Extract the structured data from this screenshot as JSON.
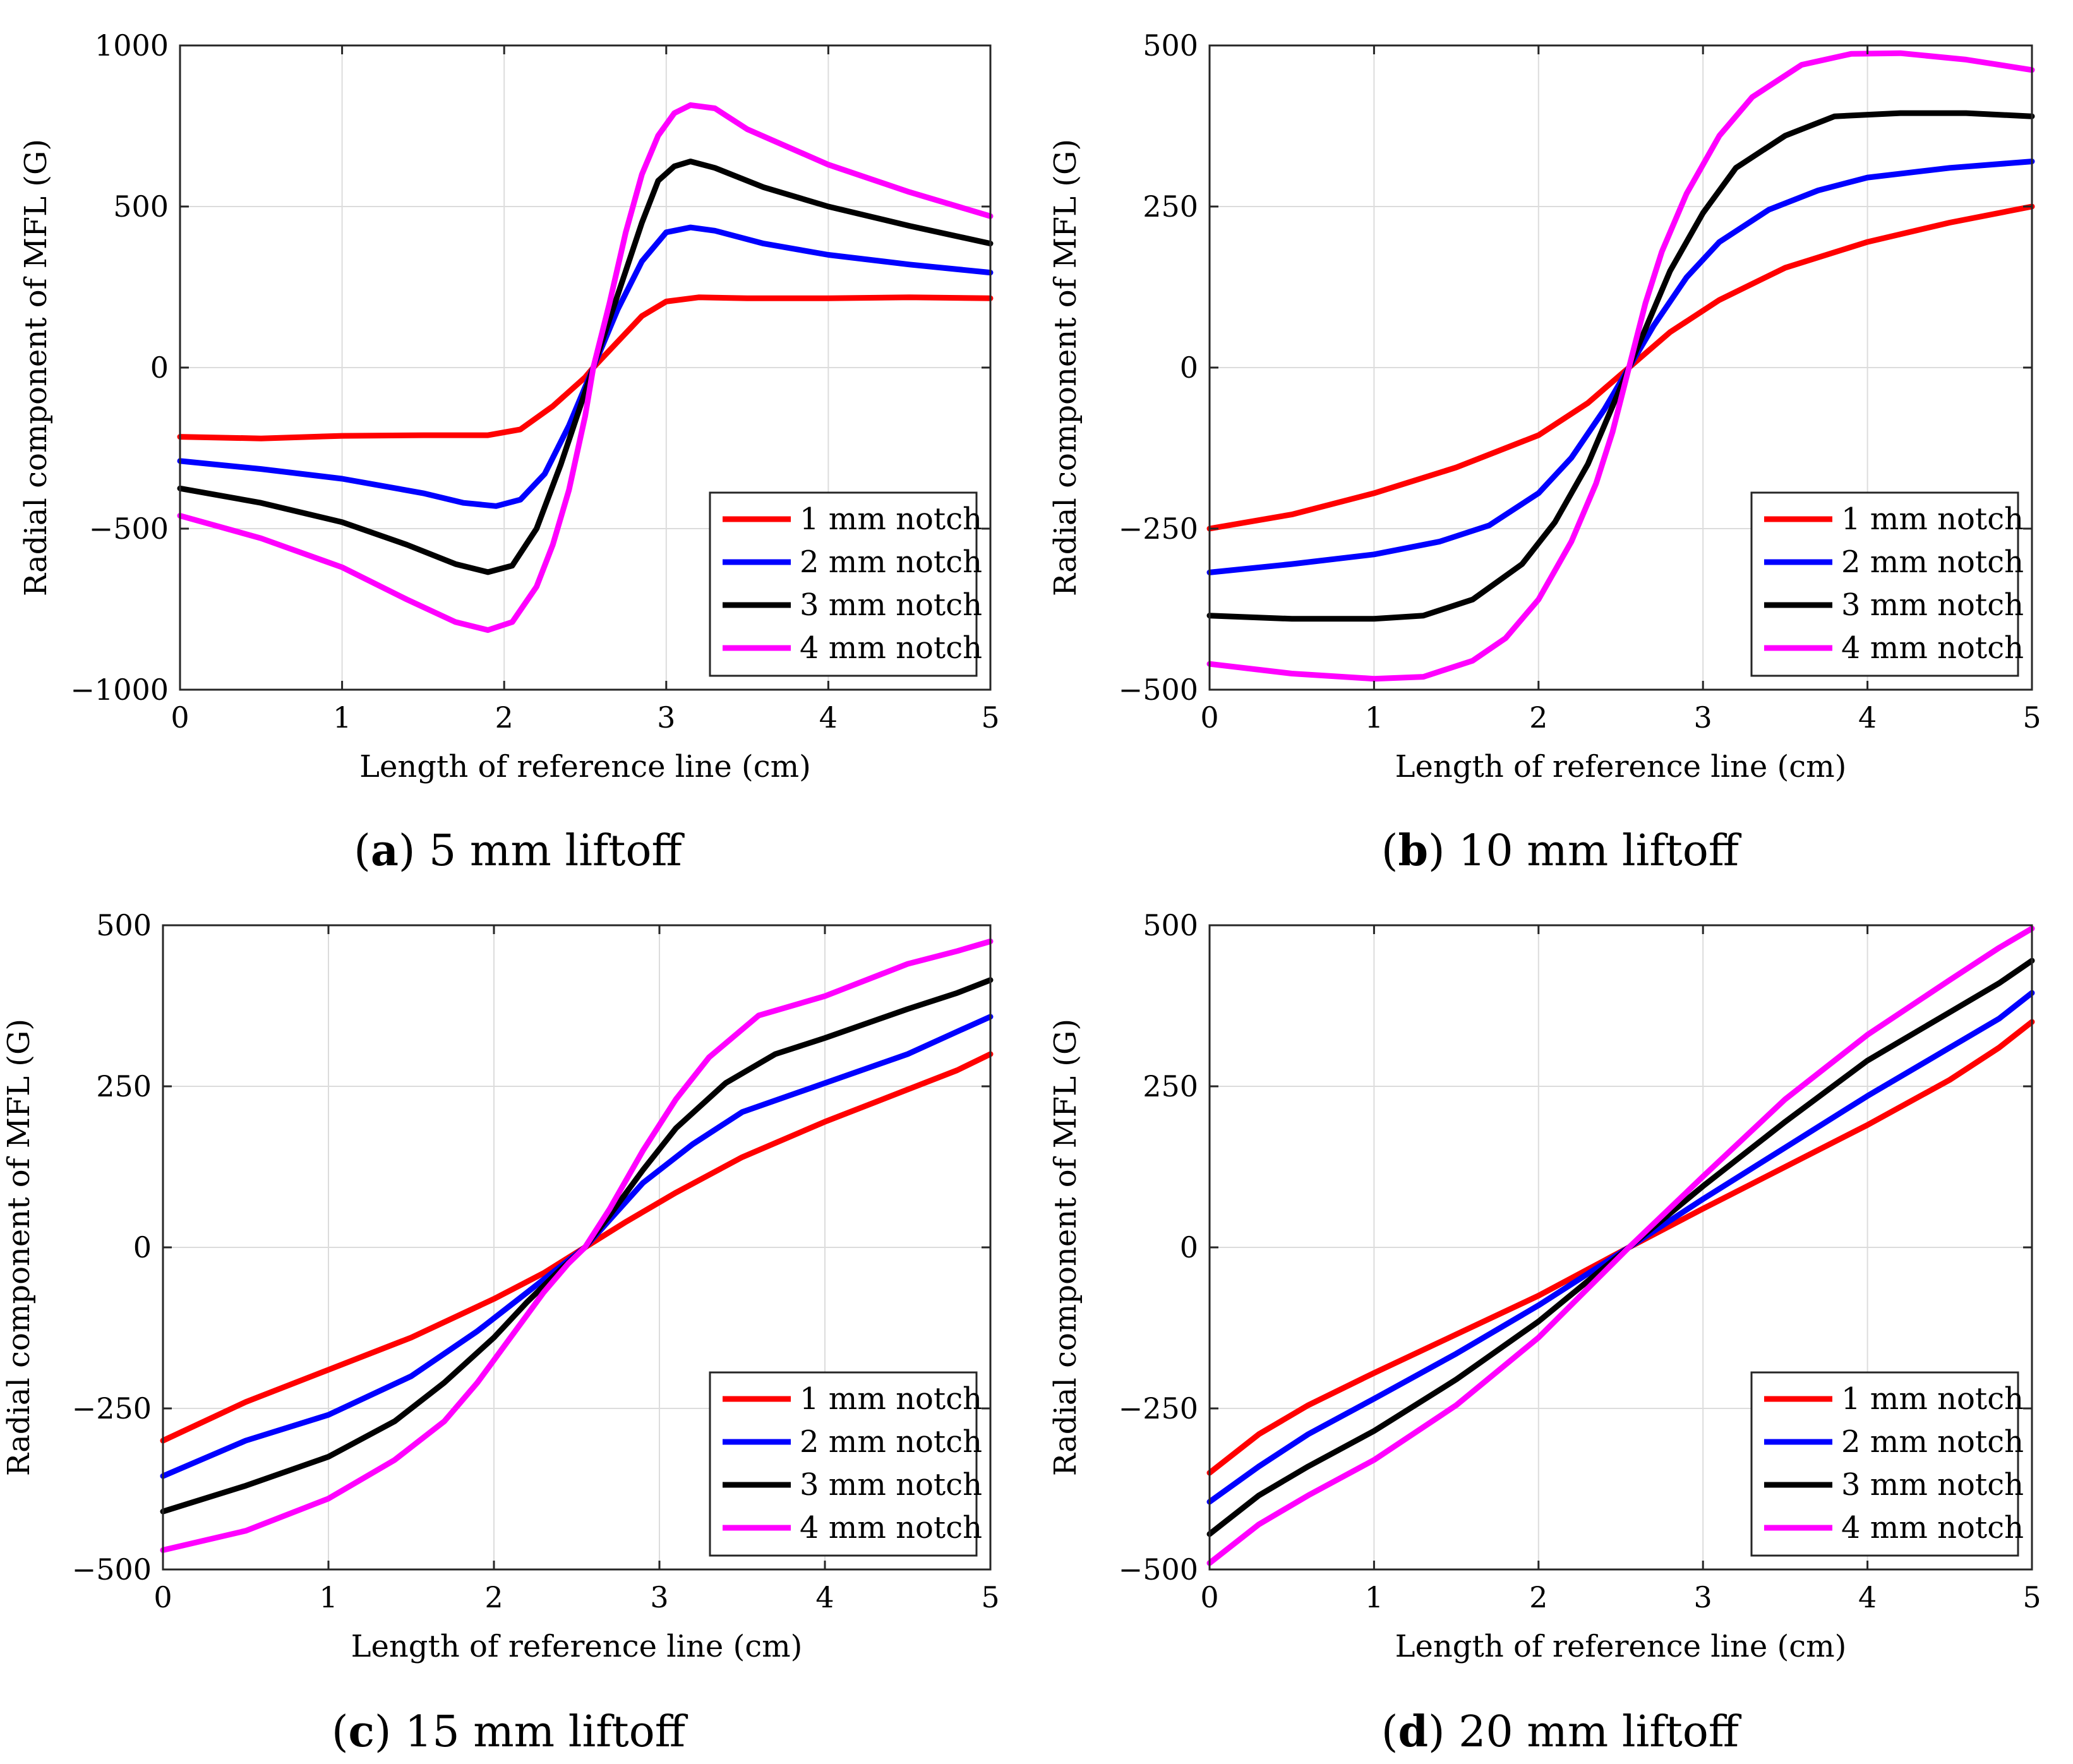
{
  "chart_data": [
    {
      "type": "line",
      "caption_letter": "a",
      "caption_text": " 5 mm liftoff",
      "xlabel": "Length of reference line (cm)",
      "ylabel": "Radial component of MFL (G)",
      "xlim": [
        0,
        5
      ],
      "ylim": [
        -1000,
        1000
      ],
      "xticks": [
        0,
        1,
        2,
        3,
        4,
        5
      ],
      "xtick_labels": [
        "0",
        "1",
        "2",
        "3",
        "4",
        "5"
      ],
      "yticks": [
        -1000,
        -500,
        0,
        500,
        1000
      ],
      "ytick_labels": [
        "−1000",
        "−500",
        "0",
        "500",
        "1000"
      ],
      "grid": true,
      "legend_position": "lower-right",
      "series": [
        {
          "name": "1 mm notch",
          "color": "#ff0000",
          "x": [
            0,
            0.5,
            1,
            1.5,
            1.9,
            2.1,
            2.3,
            2.5,
            2.55,
            2.7,
            2.85,
            3.0,
            3.2,
            3.5,
            4,
            4.5,
            5
          ],
          "y": [
            -215,
            -220,
            -212,
            -210,
            -210,
            -192,
            -120,
            -30,
            0,
            80,
            160,
            205,
            218,
            215,
            215,
            218,
            215
          ]
        },
        {
          "name": "2 mm notch",
          "color": "#0000ff",
          "x": [
            0,
            0.5,
            1,
            1.5,
            1.75,
            1.95,
            2.1,
            2.25,
            2.4,
            2.55,
            2.7,
            2.85,
            3.0,
            3.15,
            3.3,
            3.6,
            4,
            4.5,
            5
          ],
          "y": [
            -290,
            -315,
            -345,
            -390,
            -420,
            -430,
            -410,
            -330,
            -180,
            0,
            180,
            330,
            420,
            435,
            425,
            385,
            350,
            320,
            295
          ]
        },
        {
          "name": "3 mm notch",
          "color": "#000000",
          "x": [
            0,
            0.5,
            1,
            1.4,
            1.7,
            1.9,
            2.05,
            2.2,
            2.35,
            2.45,
            2.55,
            2.65,
            2.75,
            2.85,
            2.95,
            3.05,
            3.15,
            3.3,
            3.6,
            4,
            4.5,
            5
          ],
          "y": [
            -375,
            -420,
            -480,
            -550,
            -610,
            -635,
            -615,
            -500,
            -300,
            -150,
            0,
            150,
            300,
            450,
            580,
            625,
            640,
            620,
            560,
            500,
            440,
            385
          ]
        },
        {
          "name": "4 mm notch",
          "color": "#ff00ff",
          "x": [
            0,
            0.5,
            1,
            1.4,
            1.7,
            1.9,
            2.05,
            2.2,
            2.3,
            2.4,
            2.5,
            2.55,
            2.65,
            2.75,
            2.85,
            2.95,
            3.05,
            3.15,
            3.3,
            3.5,
            4,
            4.5,
            5
          ],
          "y": [
            -460,
            -530,
            -620,
            -720,
            -790,
            -815,
            -790,
            -680,
            -550,
            -380,
            -150,
            0,
            200,
            420,
            600,
            720,
            790,
            815,
            805,
            740,
            630,
            545,
            470
          ]
        }
      ]
    },
    {
      "type": "line",
      "caption_letter": "b",
      "caption_text": " 10 mm liftoff",
      "xlabel": "Length of reference line (cm)",
      "ylabel": "Radial component of MFL (G)",
      "xlim": [
        0,
        5
      ],
      "ylim": [
        -500,
        500
      ],
      "xticks": [
        0,
        1,
        2,
        3,
        4,
        5
      ],
      "xtick_labels": [
        "0",
        "1",
        "2",
        "3",
        "4",
        "5"
      ],
      "yticks": [
        -500,
        -250,
        0,
        250,
        500
      ],
      "ytick_labels": [
        "−500",
        "−250",
        "0",
        "250",
        "500"
      ],
      "grid": true,
      "legend_position": "lower-right",
      "series": [
        {
          "name": "1 mm notch",
          "color": "#ff0000",
          "x": [
            0,
            0.5,
            1,
            1.5,
            2,
            2.3,
            2.55,
            2.8,
            3.1,
            3.5,
            4,
            4.5,
            5
          ],
          "y": [
            -250,
            -228,
            -195,
            -155,
            -105,
            -55,
            0,
            55,
            105,
            155,
            195,
            225,
            250
          ]
        },
        {
          "name": "2 mm notch",
          "color": "#0000ff",
          "x": [
            0,
            0.5,
            1,
            1.4,
            1.7,
            2.0,
            2.2,
            2.4,
            2.55,
            2.7,
            2.9,
            3.1,
            3.4,
            3.7,
            4,
            4.5,
            5
          ],
          "y": [
            -318,
            -305,
            -290,
            -270,
            -245,
            -195,
            -140,
            -65,
            0,
            65,
            140,
            195,
            245,
            275,
            295,
            310,
            320
          ]
        },
        {
          "name": "3 mm notch",
          "color": "#000000",
          "x": [
            0,
            0.5,
            1,
            1.3,
            1.6,
            1.9,
            2.1,
            2.3,
            2.45,
            2.55,
            2.65,
            2.8,
            3.0,
            3.2,
            3.5,
            3.8,
            4.2,
            4.6,
            5
          ],
          "y": [
            -385,
            -390,
            -390,
            -385,
            -360,
            -305,
            -240,
            -150,
            -60,
            0,
            60,
            150,
            240,
            310,
            360,
            390,
            395,
            395,
            390
          ]
        },
        {
          "name": "4 mm notch",
          "color": "#ff00ff",
          "x": [
            0,
            0.5,
            1,
            1.3,
            1.6,
            1.8,
            2.0,
            2.2,
            2.35,
            2.45,
            2.55,
            2.65,
            2.75,
            2.9,
            3.1,
            3.3,
            3.6,
            3.9,
            4.2,
            4.6,
            5
          ],
          "y": [
            -460,
            -475,
            -483,
            -480,
            -455,
            -420,
            -360,
            -270,
            -180,
            -100,
            0,
            100,
            180,
            270,
            360,
            420,
            470,
            487,
            488,
            478,
            462
          ]
        }
      ]
    },
    {
      "type": "line",
      "caption_letter": "c",
      "caption_text": " 15 mm liftoff",
      "xlabel": "Length of reference line (cm)",
      "ylabel": "Radial component of MFL (G)",
      "xlim": [
        0,
        5
      ],
      "ylim": [
        -500,
        500
      ],
      "xticks": [
        0,
        1,
        2,
        3,
        4,
        5
      ],
      "xtick_labels": [
        "0",
        "1",
        "2",
        "3",
        "4",
        "5"
      ],
      "yticks": [
        -500,
        -250,
        0,
        250,
        500
      ],
      "ytick_labels": [
        "−500",
        "−250",
        "0",
        "250",
        "500"
      ],
      "grid": true,
      "legend_position": "lower-right",
      "series": [
        {
          "name": "1 mm notch",
          "color": "#ff0000",
          "x": [
            0,
            0.5,
            1,
            1.5,
            2,
            2.3,
            2.55,
            2.8,
            3.1,
            3.5,
            4,
            4.5,
            4.8,
            5
          ],
          "y": [
            -300,
            -240,
            -190,
            -140,
            -80,
            -40,
            0,
            40,
            85,
            140,
            195,
            245,
            275,
            300
          ]
        },
        {
          "name": "2 mm notch",
          "color": "#0000ff",
          "x": [
            0,
            0.5,
            1,
            1.5,
            1.9,
            2.2,
            2.55,
            2.9,
            3.2,
            3.5,
            4,
            4.5,
            4.8,
            5
          ],
          "y": [
            -355,
            -300,
            -260,
            -200,
            -130,
            -70,
            0,
            100,
            160,
            210,
            255,
            300,
            335,
            358
          ]
        },
        {
          "name": "3 mm notch",
          "color": "#000000",
          "x": [
            0,
            0.5,
            1,
            1.4,
            1.7,
            2.0,
            2.2,
            2.4,
            2.55,
            2.7,
            2.9,
            3.1,
            3.4,
            3.7,
            4,
            4.5,
            4.8,
            5
          ],
          "y": [
            -410,
            -370,
            -325,
            -270,
            -210,
            -140,
            -85,
            -35,
            0,
            50,
            120,
            185,
            255,
            300,
            325,
            370,
            395,
            415
          ]
        },
        {
          "name": "4 mm notch",
          "color": "#ff00ff",
          "x": [
            0,
            0.5,
            1,
            1.4,
            1.7,
            1.9,
            2.1,
            2.3,
            2.45,
            2.55,
            2.7,
            2.9,
            3.1,
            3.3,
            3.6,
            4,
            4.5,
            4.8,
            5
          ],
          "y": [
            -470,
            -440,
            -390,
            -330,
            -270,
            -210,
            -140,
            -70,
            -25,
            0,
            60,
            150,
            230,
            295,
            360,
            390,
            440,
            460,
            475
          ]
        }
      ]
    },
    {
      "type": "line",
      "caption_letter": "d",
      "caption_text": " 20 mm liftoff",
      "xlabel": "Length of reference line (cm)",
      "ylabel": "Radial component of MFL (G)",
      "xlim": [
        0,
        5
      ],
      "ylim": [
        -500,
        500
      ],
      "xticks": [
        0,
        1,
        2,
        3,
        4,
        5
      ],
      "xtick_labels": [
        "0",
        "1",
        "2",
        "3",
        "4",
        "5"
      ],
      "yticks": [
        -500,
        -250,
        0,
        250,
        500
      ],
      "ytick_labels": [
        "−500",
        "−250",
        "0",
        "250",
        "500"
      ],
      "grid": true,
      "legend_position": "lower-right",
      "series": [
        {
          "name": "1 mm notch",
          "color": "#ff0000",
          "x": [
            0,
            0.3,
            0.6,
            1,
            1.5,
            2,
            2.55,
            3,
            3.5,
            4,
            4.5,
            4.8,
            5
          ],
          "y": [
            -350,
            -290,
            -245,
            -195,
            -135,
            -75,
            0,
            60,
            125,
            190,
            260,
            310,
            350
          ]
        },
        {
          "name": "2 mm notch",
          "color": "#0000ff",
          "x": [
            0,
            0.3,
            0.6,
            1,
            1.5,
            2,
            2.55,
            3,
            3.5,
            4,
            4.5,
            4.8,
            5
          ],
          "y": [
            -395,
            -340,
            -290,
            -235,
            -165,
            -90,
            0,
            75,
            155,
            235,
            310,
            355,
            395
          ]
        },
        {
          "name": "3 mm notch",
          "color": "#000000",
          "x": [
            0,
            0.3,
            0.6,
            1,
            1.5,
            2,
            2.55,
            3,
            3.5,
            4,
            4.5,
            4.8,
            5
          ],
          "y": [
            -445,
            -385,
            -340,
            -285,
            -205,
            -115,
            0,
            95,
            195,
            290,
            365,
            410,
            445
          ]
        },
        {
          "name": "4 mm notch",
          "color": "#ff00ff",
          "x": [
            0,
            0.3,
            0.6,
            1,
            1.5,
            2,
            2.55,
            3,
            3.5,
            4,
            4.5,
            4.8,
            5
          ],
          "y": [
            -490,
            -430,
            -385,
            -330,
            -245,
            -140,
            0,
            110,
            230,
            330,
            415,
            465,
            495
          ]
        }
      ]
    }
  ]
}
